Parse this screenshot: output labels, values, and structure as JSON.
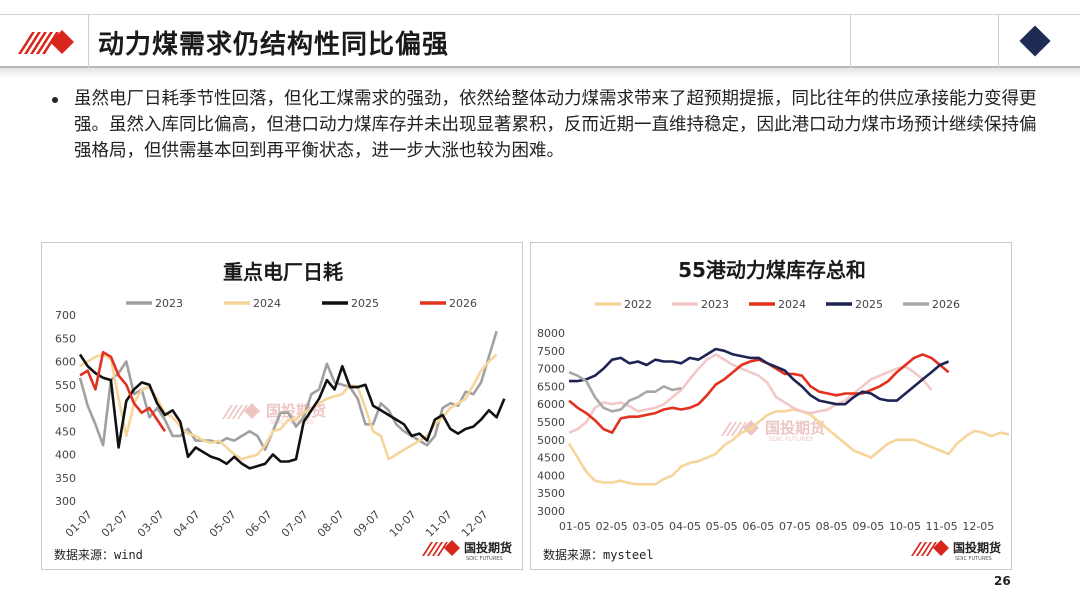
{
  "header": {
    "title": "动力煤需求仍结构性同比偏强"
  },
  "bullet": {
    "text": "虽然电厂日耗季节性回落，但化工煤需求的强劲，依然给整体动力煤需求带来了超预期提振，同比往年的供应承接能力变得更强。虽然入库同比偏高，但港口动力煤库存并未出现显著累积，反而近期一直维持稳定，因此港口动力煤市场预计继续保持偏强格局，但供需基本回到再平衡状态，进一步大涨也较为困难。"
  },
  "brand": {
    "name": "国投期货",
    "sub": "SDIC FUTURES"
  },
  "page_number": "26",
  "colors": {
    "2022": "#f6d59a",
    "2023_left": "#a0a0a0",
    "2023_right": "#f3c8c8",
    "2024": "#f6d59a",
    "2024_right": "#e3301f",
    "2025": "#111111",
    "2025_right": "#1d2454",
    "2026": "#e3301f",
    "2026_right": "#a8a8a8",
    "brand_red": "#d9261c",
    "navy": "#1d2b55"
  },
  "chart_data": [
    {
      "id": "daily-consumption",
      "type": "line",
      "title": "重点电厂日耗",
      "source": "数据来源：wind",
      "x_ticks": [
        "01-07",
        "02-07",
        "03-07",
        "04-07",
        "05-07",
        "06-07",
        "07-07",
        "08-07",
        "09-07",
        "10-07",
        "11-07",
        "12-07"
      ],
      "ylim": [
        300,
        700
      ],
      "y_ticks": [
        300,
        350,
        400,
        450,
        500,
        550,
        600,
        650,
        700
      ],
      "series": [
        {
          "name": "2023",
          "color": "#a0a0a0",
          "values": [
            565,
            505,
            465,
            420,
            560,
            575,
            600,
            530,
            540,
            480,
            500,
            475,
            440,
            440,
            455,
            430,
            430,
            430,
            425,
            435,
            430,
            440,
            450,
            440,
            410,
            450,
            490,
            490,
            460,
            480,
            530,
            540,
            595,
            555,
            550,
            545,
            520,
            465,
            465,
            510,
            495,
            465,
            450,
            440,
            430,
            420,
            440,
            500,
            510,
            505,
            535,
            530,
            555,
            610,
            665
          ]
        },
        {
          "name": "2024",
          "color": "#f6d59a",
          "values": [
            590,
            600,
            610,
            615,
            605,
            520,
            440,
            510,
            540,
            545,
            520,
            490,
            480,
            460,
            445,
            440,
            430,
            425,
            430,
            415,
            400,
            390,
            395,
            400,
            420,
            450,
            455,
            475,
            475,
            490,
            500,
            510,
            520,
            525,
            530,
            550,
            545,
            500,
            450,
            440,
            390,
            400,
            410,
            420,
            430,
            440,
            465,
            480,
            500,
            510,
            520,
            550,
            580,
            600,
            615
          ]
        },
        {
          "name": "2025",
          "color": "#111111",
          "values": [
            615,
            590,
            575,
            565,
            560,
            415,
            515,
            540,
            555,
            550,
            510,
            485,
            495,
            470,
            395,
            415,
            405,
            395,
            390,
            380,
            395,
            380,
            370,
            375,
            380,
            400,
            385,
            385,
            390,
            470,
            495,
            520,
            560,
            540,
            590,
            545,
            545,
            550,
            505,
            495,
            485,
            475,
            465,
            440,
            445,
            430,
            475,
            485,
            455,
            445,
            455,
            460,
            475,
            495,
            480,
            520
          ]
        },
        {
          "name": "2026",
          "color": "#e3301f",
          "values": [
            570,
            580,
            540,
            620,
            610,
            570,
            550,
            510,
            490,
            500,
            475,
            450
          ]
        }
      ]
    },
    {
      "id": "port-stock",
      "type": "line",
      "title": "55港动力煤库存总和",
      "source": "数据来源：mysteel",
      "x_ticks": [
        "01-05",
        "02-05",
        "03-05",
        "04-05",
        "05-05",
        "06-05",
        "07-05",
        "08-05",
        "09-05",
        "10-05",
        "11-05",
        "12-05"
      ],
      "ylim": [
        3000,
        8000
      ],
      "y_ticks": [
        3000,
        3500,
        4000,
        4500,
        5000,
        5500,
        6000,
        6500,
        7000,
        7500,
        8000
      ],
      "series": [
        {
          "name": "2022",
          "color": "#f6d59a",
          "values": [
            4900,
            4500,
            4100,
            3850,
            3800,
            3800,
            3850,
            3780,
            3750,
            3750,
            3750,
            3900,
            4000,
            4250,
            4350,
            4400,
            4500,
            4600,
            4850,
            5000,
            5200,
            5300,
            5500,
            5700,
            5800,
            5800,
            5850,
            5800,
            5700,
            5500,
            5300,
            5100,
            4900,
            4700,
            4600,
            4500,
            4700,
            4900,
            5000,
            5000,
            5000,
            4900,
            4800,
            4700,
            4600,
            4900,
            5100,
            5250,
            5200,
            5100,
            5200,
            5150
          ]
        },
        {
          "name": "2023",
          "color": "#f3c8c8",
          "values": [
            5200,
            5300,
            5500,
            5900,
            6050,
            6000,
            6050,
            5950,
            5800,
            5850,
            5900,
            6000,
            6200,
            6400,
            6700,
            7000,
            7250,
            7400,
            7250,
            7100,
            7000,
            6900,
            6800,
            6600,
            6200,
            6050,
            5900,
            5800,
            5750,
            5800,
            5850,
            6000,
            6100,
            6300,
            6500,
            6700,
            6800,
            6900,
            7000,
            7050,
            6900,
            6700,
            6400
          ]
        },
        {
          "name": "2024",
          "color": "#e3301f",
          "values": [
            6100,
            5900,
            5750,
            5550,
            5300,
            5200,
            5600,
            5650,
            5650,
            5700,
            5750,
            5850,
            5900,
            5850,
            5900,
            6000,
            6250,
            6550,
            6700,
            6900,
            7100,
            7200,
            7250,
            7150,
            7000,
            6850,
            6850,
            6800,
            6500,
            6350,
            6300,
            6250,
            6300,
            6300,
            6300,
            6400,
            6500,
            6650,
            6900,
            7100,
            7300,
            7400,
            7300,
            7100,
            6900
          ]
        },
        {
          "name": "2025",
          "color": "#1d2454",
          "values": [
            6650,
            6650,
            6700,
            6800,
            7000,
            7250,
            7300,
            7150,
            7200,
            7100,
            7250,
            7200,
            7200,
            7150,
            7300,
            7250,
            7400,
            7550,
            7500,
            7400,
            7350,
            7300,
            7300,
            7150,
            7050,
            6950,
            6700,
            6500,
            6250,
            6100,
            6050,
            6000,
            6000,
            6200,
            6350,
            6300,
            6150,
            6100,
            6100,
            6300,
            6500,
            6700,
            6900,
            7100,
            7200
          ]
        },
        {
          "name": "2026",
          "color": "#a8a8a8",
          "values": [
            6900,
            6800,
            6650,
            6200,
            5900,
            5800,
            5850,
            6100,
            6200,
            6350,
            6350,
            6500,
            6400,
            6450
          ]
        }
      ]
    }
  ]
}
